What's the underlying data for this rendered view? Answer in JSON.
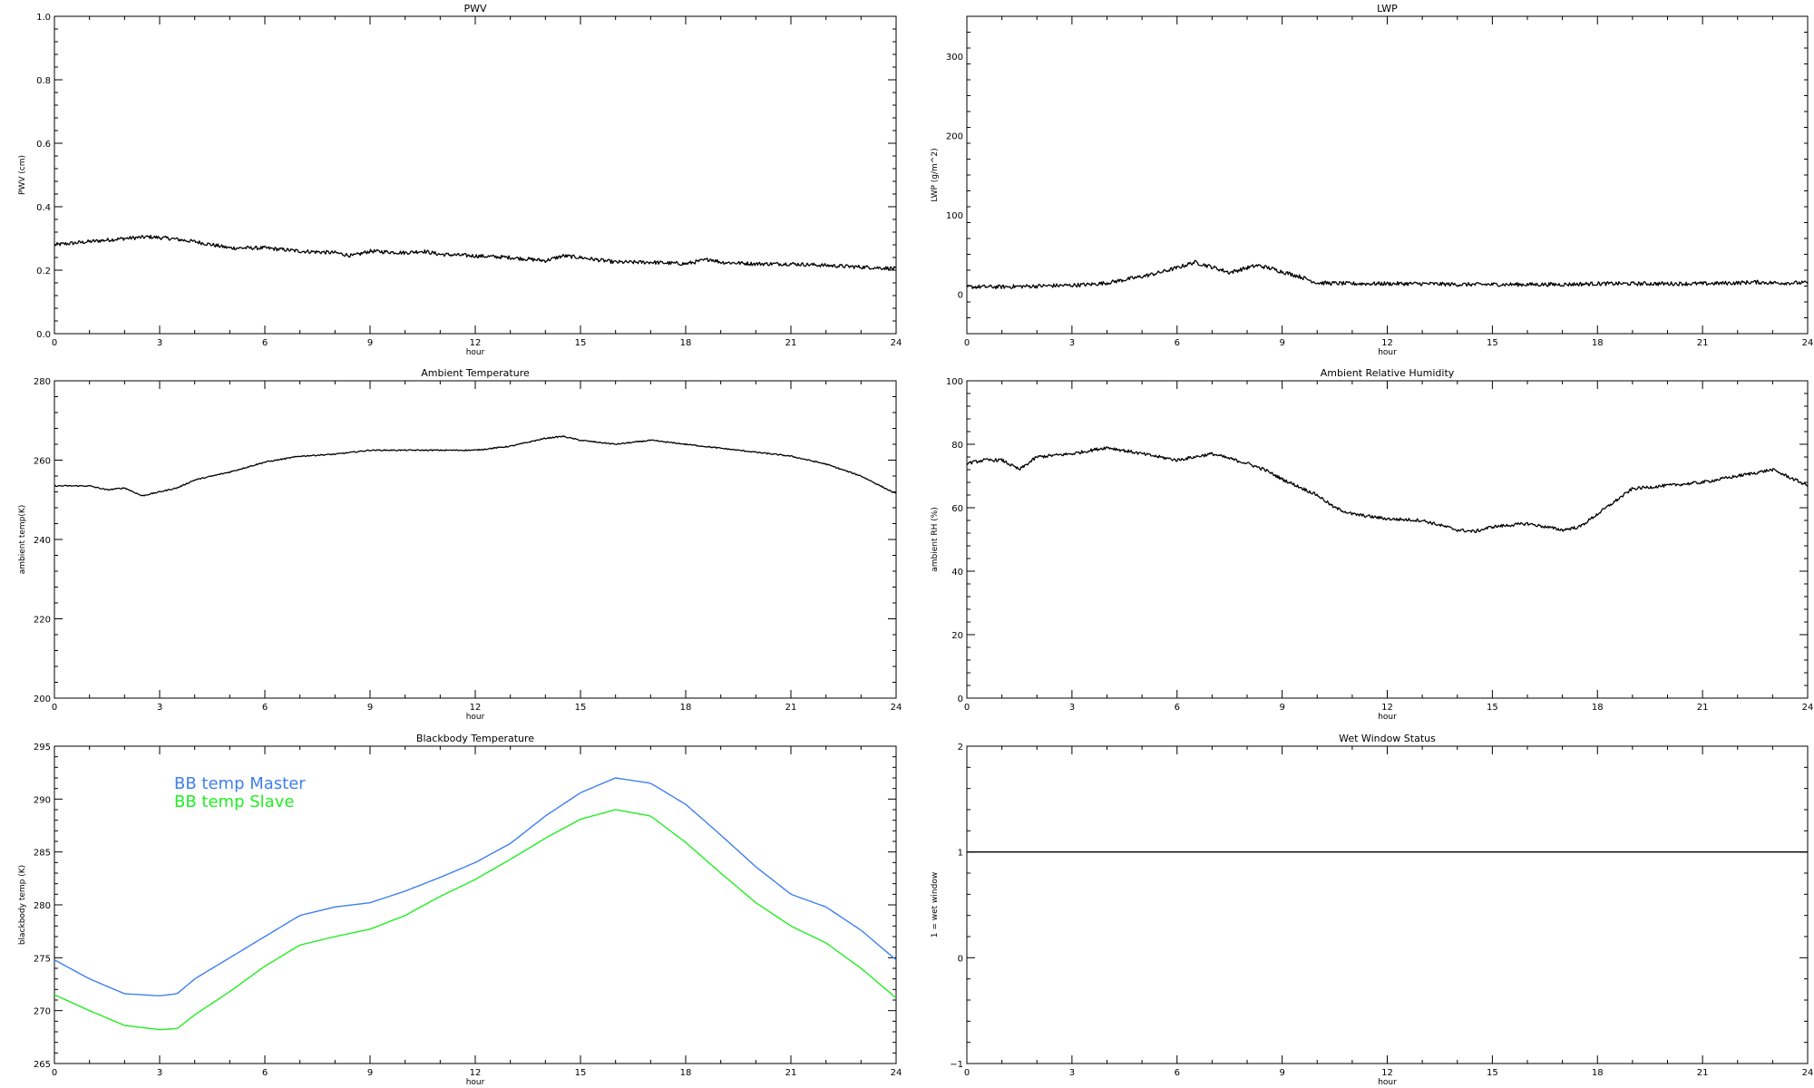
{
  "chart_data": [
    {
      "type": "line",
      "title": "PWV",
      "xlabel": "hour",
      "ylabel": "PWV (cm)",
      "xlim": [
        0,
        24
      ],
      "ylim": [
        0,
        1
      ],
      "xticks": [
        0,
        3,
        6,
        9,
        12,
        15,
        18,
        21,
        24
      ],
      "yticks": [
        0.0,
        0.2,
        0.4,
        0.6,
        0.8,
        1.0
      ],
      "ytick_labels": [
        "0.0",
        "0.2",
        "0.4",
        "0.6",
        "0.8",
        "1.0"
      ],
      "series": [
        {
          "color": "#000000",
          "noise": 0.006,
          "x": [
            0,
            1,
            2,
            2.7,
            3.3,
            4,
            5,
            6,
            7,
            8,
            8.5,
            9,
            10,
            10.5,
            11,
            12,
            13,
            14,
            14.5,
            15,
            16,
            17,
            18,
            18.7,
            19,
            20,
            21,
            22,
            23,
            24
          ],
          "values": [
            0.28,
            0.29,
            0.3,
            0.305,
            0.3,
            0.29,
            0.27,
            0.27,
            0.26,
            0.255,
            0.245,
            0.26,
            0.255,
            0.26,
            0.25,
            0.245,
            0.24,
            0.23,
            0.245,
            0.24,
            0.225,
            0.225,
            0.22,
            0.235,
            0.225,
            0.22,
            0.22,
            0.215,
            0.21,
            0.205
          ]
        }
      ]
    },
    {
      "type": "line",
      "title": "LWP",
      "xlabel": "hour",
      "ylabel": "LWP (g/m^2)",
      "xlim": [
        0,
        24
      ],
      "ylim": [
        -50,
        350
      ],
      "xticks": [
        0,
        3,
        6,
        9,
        12,
        15,
        18,
        21,
        24
      ],
      "yticks": [
        0,
        100,
        200,
        300
      ],
      "ytick_labels": [
        "0",
        "100",
        "200",
        "300"
      ],
      "series": [
        {
          "color": "#000000",
          "noise": 2.5,
          "x": [
            0,
            1,
            2,
            3,
            3.5,
            4,
            4.5,
            5,
            5.5,
            6,
            6.5,
            7,
            7.5,
            8,
            8.3,
            8.7,
            9,
            9.5,
            10,
            11,
            12,
            13,
            14,
            15,
            16,
            17,
            18,
            19,
            20,
            21,
            22,
            22.5,
            23,
            24
          ],
          "values": [
            9,
            9,
            10,
            11,
            12,
            14,
            18,
            22,
            27,
            33,
            40,
            34,
            27,
            33,
            36,
            32,
            28,
            22,
            14,
            13,
            13,
            13,
            12,
            12,
            12,
            12,
            13,
            13,
            13,
            13,
            14,
            15,
            14,
            14
          ]
        }
      ]
    },
    {
      "type": "line",
      "title": "Ambient Temperature",
      "xlabel": "hour",
      "ylabel": "ambient temp(K)",
      "xlim": [
        0,
        24
      ],
      "ylim": [
        200,
        280
      ],
      "xticks": [
        0,
        3,
        6,
        9,
        12,
        15,
        18,
        21,
        24
      ],
      "yticks": [
        200,
        220,
        240,
        260,
        280
      ],
      "ytick_labels": [
        "200",
        "220",
        "240",
        "260",
        "280"
      ],
      "series": [
        {
          "color": "#000000",
          "noise": 0.15,
          "x": [
            0,
            1,
            1.5,
            2,
            2.5,
            3,
            3.5,
            4,
            5,
            6,
            7,
            8,
            9,
            10,
            11,
            12,
            13,
            14,
            14.5,
            15,
            16,
            17,
            18,
            19,
            20,
            21,
            22,
            23,
            24
          ],
          "values": [
            253.5,
            253.5,
            252.5,
            253,
            251,
            252,
            253,
            255,
            257,
            259.5,
            261,
            261.5,
            262.5,
            262.5,
            262.5,
            262.5,
            263.5,
            265.5,
            266,
            265,
            264,
            265,
            264,
            263,
            262,
            261,
            259,
            256,
            251.5
          ]
        }
      ]
    },
    {
      "type": "line",
      "title": "Ambient Relative Humidity",
      "xlabel": "hour",
      "ylabel": "ambient RH (%)",
      "xlim": [
        0,
        24
      ],
      "ylim": [
        0,
        100
      ],
      "xticks": [
        0,
        3,
        6,
        9,
        12,
        15,
        18,
        21,
        24
      ],
      "yticks": [
        0,
        20,
        40,
        60,
        80,
        100
      ],
      "ytick_labels": [
        "0",
        "20",
        "40",
        "60",
        "80",
        "100"
      ],
      "series": [
        {
          "color": "#000000",
          "noise": 0.5,
          "x": [
            0,
            0.5,
            1,
            1.5,
            2,
            3,
            4,
            5,
            6,
            7,
            8,
            8.5,
            9,
            10,
            10.5,
            11,
            12,
            13,
            14,
            14.5,
            15,
            16,
            17,
            17.5,
            18,
            19,
            20,
            21,
            22,
            23,
            24
          ],
          "values": [
            74,
            75,
            75,
            72,
            76,
            77,
            79,
            77,
            75,
            77,
            74,
            72,
            69,
            64,
            60,
            58,
            56.5,
            56,
            53,
            52.5,
            54,
            55,
            53,
            54,
            58,
            66,
            67,
            68,
            70,
            72,
            67
          ]
        }
      ]
    },
    {
      "type": "line",
      "title": "Blackbody Temperature",
      "xlabel": "hour",
      "ylabel": "blackbody temp (K)",
      "xlim": [
        0,
        24
      ],
      "ylim": [
        265,
        295
      ],
      "xticks": [
        0,
        3,
        6,
        9,
        12,
        15,
        18,
        21,
        24
      ],
      "yticks": [
        265,
        270,
        275,
        280,
        285,
        290,
        295
      ],
      "ytick_labels": [
        "265",
        "270",
        "275",
        "280",
        "285",
        "290",
        "295"
      ],
      "legend": "top-left",
      "series": [
        {
          "name": "BB temp Master",
          "color": "#3f7ff0",
          "noise": 0,
          "x": [
            0,
            1,
            2,
            3,
            3.5,
            4,
            5,
            6,
            7,
            8,
            9,
            10,
            11,
            12,
            13,
            14,
            15,
            16,
            17,
            18,
            19,
            20,
            21,
            22,
            23,
            24
          ],
          "values": [
            274.8,
            273,
            271.6,
            271.4,
            271.6,
            273,
            275,
            277,
            279,
            279.8,
            280.2,
            281.3,
            282.6,
            284,
            285.8,
            288.4,
            290.6,
            292,
            291.5,
            289.5,
            286.6,
            283.6,
            281,
            279.8,
            277.6,
            274.8
          ]
        },
        {
          "name": "BB temp Slave",
          "color": "#22ee22",
          "noise": 0,
          "x": [
            0,
            1,
            2,
            3,
            3.5,
            4,
            5,
            6,
            7,
            8,
            9,
            10,
            11,
            12,
            13,
            14,
            15,
            16,
            17,
            18,
            19,
            20,
            21,
            22,
            23,
            24
          ],
          "values": [
            271.5,
            270,
            268.6,
            268.2,
            268.3,
            269.6,
            271.8,
            274.2,
            276.2,
            277,
            277.7,
            279,
            280.8,
            282.4,
            284.3,
            286.3,
            288.1,
            289,
            288.4,
            285.9,
            283,
            280.2,
            278,
            276.4,
            274,
            271.2
          ]
        }
      ]
    },
    {
      "type": "line",
      "title": "Wet Window Status",
      "xlabel": "hour",
      "ylabel": "1 = wet window",
      "xlim": [
        0,
        24
      ],
      "ylim": [
        -1,
        2
      ],
      "xticks": [
        0,
        3,
        6,
        9,
        12,
        15,
        18,
        21,
        24
      ],
      "yticks": [
        -1,
        0,
        1,
        2
      ],
      "ytick_labels": [
        "−1",
        "0",
        "1",
        "2"
      ],
      "series": [
        {
          "color": "#000000",
          "noise": 0,
          "x": [
            0,
            24
          ],
          "values": [
            1,
            1
          ]
        }
      ]
    }
  ]
}
